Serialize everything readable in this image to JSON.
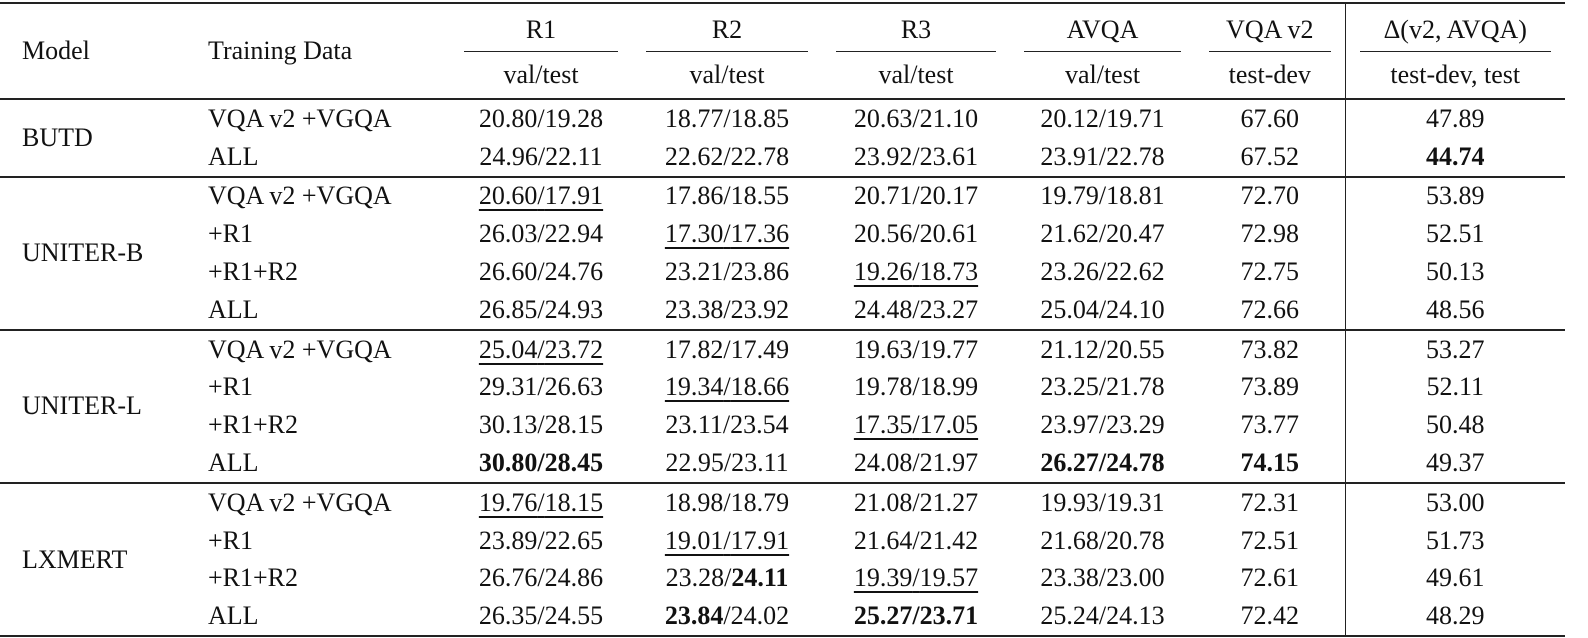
{
  "header": {
    "model": "Model",
    "training_data": "Training Data",
    "columns": [
      {
        "name": "R1",
        "split": "val/test"
      },
      {
        "name": "R2",
        "split": "val/test"
      },
      {
        "name": "R3",
        "split": "val/test"
      },
      {
        "name": "AVQA",
        "split": "val/test"
      },
      {
        "name": "VQA v2",
        "split": "test-dev"
      },
      {
        "name": "Δ(v2, AVQA)",
        "split": "test-dev, test"
      }
    ]
  },
  "groups": [
    {
      "model": "BUTD",
      "rows": [
        {
          "data": "VQA v2 +VGQA",
          "cells": [
            {
              "v": "20.80",
              "t": "19.28"
            },
            {
              "v": "18.77",
              "t": "18.85"
            },
            {
              "v": "20.63",
              "t": "21.10"
            },
            {
              "v": "20.12",
              "t": "19.71"
            },
            {
              "v": "67.60"
            },
            {
              "v": "47.89"
            }
          ]
        },
        {
          "data": "ALL",
          "cells": [
            {
              "v": "24.96",
              "t": "22.11"
            },
            {
              "v": "22.62",
              "t": "22.78"
            },
            {
              "v": "23.92",
              "t": "23.61"
            },
            {
              "v": "23.91",
              "t": "22.78"
            },
            {
              "v": "67.52"
            },
            {
              "v": "44.74",
              "bv": true
            }
          ]
        }
      ]
    },
    {
      "model": "UNITER-B",
      "rows": [
        {
          "data": "VQA v2 +VGQA",
          "cells": [
            {
              "v": "20.60",
              "t": "17.91",
              "u": true
            },
            {
              "v": "17.86",
              "t": "18.55"
            },
            {
              "v": "20.71",
              "t": "20.17"
            },
            {
              "v": "19.79",
              "t": "18.81"
            },
            {
              "v": "72.70"
            },
            {
              "v": "53.89"
            }
          ]
        },
        {
          "data": "+R1",
          "cells": [
            {
              "v": "26.03",
              "t": "22.94"
            },
            {
              "v": "17.30",
              "t": "17.36",
              "u": true
            },
            {
              "v": "20.56",
              "t": "20.61"
            },
            {
              "v": "21.62",
              "t": "20.47"
            },
            {
              "v": "72.98"
            },
            {
              "v": "52.51"
            }
          ]
        },
        {
          "data": "+R1+R2",
          "cells": [
            {
              "v": "26.60",
              "t": "24.76"
            },
            {
              "v": "23.21",
              "t": "23.86"
            },
            {
              "v": "19.26",
              "t": "18.73",
              "u": true
            },
            {
              "v": "23.26",
              "t": "22.62"
            },
            {
              "v": "72.75"
            },
            {
              "v": "50.13"
            }
          ]
        },
        {
          "data": "ALL",
          "cells": [
            {
              "v": "26.85",
              "t": "24.93"
            },
            {
              "v": "23.38",
              "t": "23.92"
            },
            {
              "v": "24.48",
              "t": "23.27"
            },
            {
              "v": "25.04",
              "t": "24.10"
            },
            {
              "v": "72.66"
            },
            {
              "v": "48.56"
            }
          ]
        }
      ]
    },
    {
      "model": "UNITER-L",
      "rows": [
        {
          "data": "VQA v2 +VGQA",
          "cells": [
            {
              "v": "25.04",
              "t": "23.72",
              "u": true
            },
            {
              "v": "17.82",
              "t": "17.49"
            },
            {
              "v": "19.63",
              "t": "19.77"
            },
            {
              "v": "21.12",
              "t": "20.55"
            },
            {
              "v": "73.82"
            },
            {
              "v": "53.27"
            }
          ]
        },
        {
          "data": "+R1",
          "cells": [
            {
              "v": "29.31",
              "t": "26.63"
            },
            {
              "v": "19.34",
              "t": "18.66",
              "u": true
            },
            {
              "v": "19.78",
              "t": "18.99"
            },
            {
              "v": "23.25",
              "t": "21.78"
            },
            {
              "v": "73.89"
            },
            {
              "v": "52.11"
            }
          ]
        },
        {
          "data": "+R1+R2",
          "cells": [
            {
              "v": "30.13",
              "t": "28.15"
            },
            {
              "v": "23.11",
              "t": "23.54"
            },
            {
              "v": "17.35",
              "t": "17.05",
              "u": true
            },
            {
              "v": "23.97",
              "t": "23.29"
            },
            {
              "v": "73.77"
            },
            {
              "v": "50.48"
            }
          ]
        },
        {
          "data": "ALL",
          "cells": [
            {
              "v": "30.80",
              "t": "28.45",
              "bv": true,
              "bt": true
            },
            {
              "v": "22.95",
              "t": "23.11"
            },
            {
              "v": "24.08",
              "t": "21.97"
            },
            {
              "v": "26.27",
              "t": "24.78",
              "bv": true,
              "bt": true
            },
            {
              "v": "74.15",
              "bv": true
            },
            {
              "v": "49.37"
            }
          ]
        }
      ]
    },
    {
      "model": "LXMERT",
      "rows": [
        {
          "data": "VQA v2 +VGQA",
          "cells": [
            {
              "v": "19.76",
              "t": "18.15",
              "u": true
            },
            {
              "v": "18.98",
              "t": "18.79"
            },
            {
              "v": "21.08",
              "t": "21.27"
            },
            {
              "v": "19.93",
              "t": "19.31"
            },
            {
              "v": "72.31"
            },
            {
              "v": "53.00"
            }
          ]
        },
        {
          "data": "+R1",
          "cells": [
            {
              "v": "23.89",
              "t": "22.65"
            },
            {
              "v": "19.01",
              "t": "17.91",
              "u": true
            },
            {
              "v": "21.64",
              "t": "21.42"
            },
            {
              "v": "21.68",
              "t": "20.78"
            },
            {
              "v": "72.51"
            },
            {
              "v": "51.73"
            }
          ]
        },
        {
          "data": "+R1+R2",
          "cells": [
            {
              "v": "26.76",
              "t": "24.86"
            },
            {
              "v": "23.28",
              "t": "24.11",
              "bt": true
            },
            {
              "v": "19.39",
              "t": "19.57",
              "u": true
            },
            {
              "v": "23.38",
              "t": "23.00"
            },
            {
              "v": "72.61"
            },
            {
              "v": "49.61"
            }
          ]
        },
        {
          "data": "ALL",
          "cells": [
            {
              "v": "26.35",
              "t": "24.55"
            },
            {
              "v": "23.84",
              "t": "24.02",
              "bv": true
            },
            {
              "v": "25.27",
              "t": "23.71",
              "bv": true,
              "bt": true
            },
            {
              "v": "25.24",
              "t": "24.13"
            },
            {
              "v": "72.42"
            },
            {
              "v": "48.29"
            }
          ]
        }
      ]
    }
  ]
}
